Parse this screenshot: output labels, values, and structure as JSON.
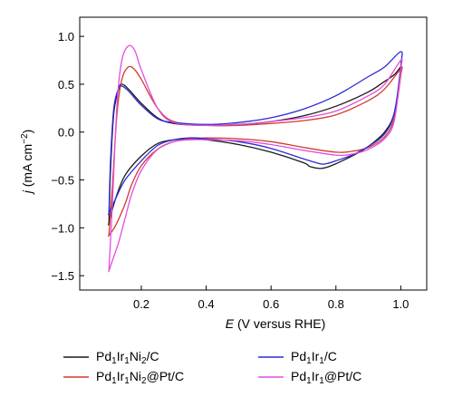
{
  "chart_data": {
    "type": "line",
    "xlabel_var": "E",
    "xlabel_rest": " (V versus RHE)",
    "ylabel_var": "j",
    "ylabel_rest": " (mA cm",
    "ylabel_exp": "−2",
    "ylabel_close": ")",
    "xlim": [
      0.01,
      1.08
    ],
    "ylim": [
      -1.65,
      1.2
    ],
    "xticks": [
      "0.2",
      "0.4",
      "0.6",
      "0.8",
      "1.0"
    ],
    "yticks": [
      "1.0",
      "0.5",
      "0.0",
      "−0.5",
      "−1.0",
      "−1.5"
    ],
    "xtick_values": [
      0.2,
      0.4,
      0.6,
      0.8,
      1.0
    ],
    "ytick_values": [
      1.0,
      0.5,
      0.0,
      -0.5,
      -1.0,
      -1.5
    ],
    "grid": false,
    "legend_position": "bottom",
    "series": [
      {
        "legend": [
          "Pd",
          "1",
          "Ir",
          "1",
          "Ni",
          "2",
          "/C"
        ],
        "color": "#1a1a1a",
        "x": [
          0.1,
          0.105,
          0.115,
          0.13,
          0.14,
          0.16,
          0.2,
          0.25,
          0.3,
          0.4,
          0.5,
          0.6,
          0.7,
          0.8,
          0.9,
          0.95,
          0.98,
          1.0,
          1.0,
          0.98,
          0.95,
          0.9,
          0.85,
          0.8,
          0.77,
          0.75,
          0.72,
          0.7,
          0.6,
          0.5,
          0.4,
          0.35,
          0.3,
          0.25,
          0.2,
          0.15,
          0.12,
          0.1
        ],
        "y": [
          -0.95,
          -0.4,
          0.2,
          0.45,
          0.5,
          0.45,
          0.3,
          0.15,
          0.09,
          0.07,
          0.08,
          0.11,
          0.17,
          0.27,
          0.42,
          0.53,
          0.6,
          0.68,
          0.62,
          0.2,
          0.0,
          -0.15,
          -0.25,
          -0.33,
          -0.37,
          -0.38,
          -0.36,
          -0.32,
          -0.21,
          -0.13,
          -0.08,
          -0.07,
          -0.08,
          -0.12,
          -0.25,
          -0.45,
          -0.7,
          -0.95
        ]
      },
      {
        "legend": [
          "Pd",
          "1",
          "Ir",
          "1",
          "Ni",
          "2",
          "@Pt/C"
        ],
        "color": "#d23a2e",
        "x": [
          0.1,
          0.11,
          0.125,
          0.14,
          0.16,
          0.18,
          0.2,
          0.25,
          0.3,
          0.4,
          0.5,
          0.6,
          0.7,
          0.8,
          0.9,
          0.95,
          1.0,
          1.0,
          0.98,
          0.95,
          0.9,
          0.85,
          0.8,
          0.7,
          0.6,
          0.5,
          0.4,
          0.35,
          0.3,
          0.25,
          0.2,
          0.17,
          0.15,
          0.12,
          0.1
        ],
        "y": [
          -1.08,
          -0.6,
          0.2,
          0.55,
          0.68,
          0.65,
          0.55,
          0.25,
          0.11,
          0.07,
          0.07,
          0.09,
          0.12,
          0.18,
          0.33,
          0.45,
          0.66,
          0.6,
          0.15,
          -0.05,
          -0.16,
          -0.2,
          -0.21,
          -0.16,
          -0.1,
          -0.07,
          -0.06,
          -0.07,
          -0.1,
          -0.18,
          -0.35,
          -0.55,
          -0.75,
          -0.98,
          -1.08
        ]
      },
      {
        "legend": [
          "Pd",
          "1",
          "Ir",
          "1",
          "/C"
        ],
        "color": "#2b2bd6",
        "x": [
          0.1,
          0.105,
          0.115,
          0.13,
          0.14,
          0.16,
          0.2,
          0.25,
          0.3,
          0.4,
          0.5,
          0.6,
          0.7,
          0.8,
          0.9,
          0.95,
          1.0,
          1.0,
          0.98,
          0.95,
          0.9,
          0.85,
          0.8,
          0.77,
          0.75,
          0.7,
          0.6,
          0.5,
          0.4,
          0.35,
          0.3,
          0.25,
          0.2,
          0.15,
          0.12,
          0.1
        ],
        "y": [
          -0.85,
          -0.3,
          0.25,
          0.46,
          0.48,
          0.43,
          0.28,
          0.14,
          0.1,
          0.08,
          0.1,
          0.15,
          0.24,
          0.38,
          0.58,
          0.68,
          0.84,
          0.7,
          0.2,
          -0.02,
          -0.15,
          -0.24,
          -0.3,
          -0.33,
          -0.33,
          -0.28,
          -0.17,
          -0.1,
          -0.07,
          -0.06,
          -0.08,
          -0.14,
          -0.3,
          -0.5,
          -0.7,
          -0.85
        ]
      },
      {
        "legend": [
          "Pd",
          "1",
          "Ir",
          "1",
          "@Pt/C"
        ],
        "color": "#e04ee0",
        "x": [
          0.1,
          0.11,
          0.125,
          0.14,
          0.16,
          0.18,
          0.2,
          0.25,
          0.3,
          0.4,
          0.5,
          0.6,
          0.7,
          0.8,
          0.9,
          0.95,
          1.0,
          1.0,
          0.98,
          0.95,
          0.9,
          0.85,
          0.8,
          0.7,
          0.6,
          0.5,
          0.4,
          0.35,
          0.3,
          0.25,
          0.2,
          0.17,
          0.15,
          0.13,
          0.11,
          0.1
        ],
        "y": [
          -1.45,
          -0.8,
          0.3,
          0.75,
          0.9,
          0.85,
          0.65,
          0.25,
          0.1,
          0.07,
          0.08,
          0.11,
          0.15,
          0.22,
          0.38,
          0.5,
          0.75,
          0.66,
          0.12,
          -0.07,
          -0.18,
          -0.23,
          -0.24,
          -0.19,
          -0.13,
          -0.09,
          -0.08,
          -0.08,
          -0.1,
          -0.18,
          -0.4,
          -0.65,
          -0.9,
          -1.15,
          -1.35,
          -1.45
        ]
      }
    ]
  }
}
